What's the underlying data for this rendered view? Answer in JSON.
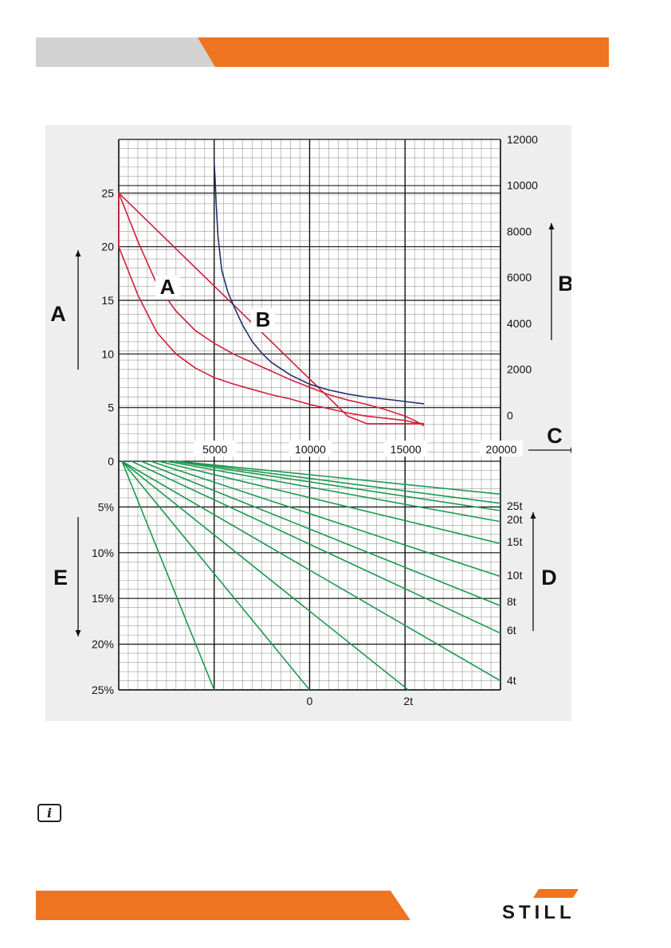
{
  "header": {
    "accent_color": "#ee7421",
    "band_color": "#d2d2d2"
  },
  "logo": {
    "text": "STILL",
    "stripe_color": "#ee7421"
  },
  "info": {
    "icon": "info-icon",
    "glyph": "i"
  },
  "chart_data": {
    "type": "line",
    "upper": {
      "x_ticks": [
        "5000",
        "10000",
        "15000",
        "20000"
      ],
      "y_left_ticks": [
        "5",
        "10",
        "15",
        "20",
        "25"
      ],
      "y_right_ticks": [
        "0",
        "2000",
        "4000",
        "6000",
        "8000",
        "10000",
        "12000"
      ],
      "xlim": [
        0,
        20000
      ],
      "ylim_left": [
        0,
        30
      ],
      "ylim_right": [
        -2000,
        12000
      ],
      "axis_labels": {
        "left": "A",
        "right": "B",
        "x": "C"
      },
      "curve_labels": {
        "A": "A",
        "B": "B"
      },
      "series": [
        {
          "name": "A (upper)",
          "axis": "left",
          "color": "#d31f3b",
          "x": [
            0,
            1000,
            2000,
            3000,
            4000,
            5000,
            6000,
            7000,
            8000,
            9000,
            10000,
            11000,
            12000,
            13000,
            14000,
            15000,
            15500,
            16000
          ],
          "y": [
            25,
            20.5,
            16.5,
            14,
            12.2,
            11,
            10,
            9.2,
            8.4,
            7.6,
            6.9,
            6.2,
            5.7,
            5.3,
            4.8,
            4.2,
            3.8,
            3.3
          ]
        },
        {
          "name": "A (lower)",
          "axis": "left",
          "color": "#d31f3b",
          "x": [
            0,
            1000,
            2000,
            3000,
            4000,
            5000,
            6000,
            7000,
            8000,
            9000,
            10000,
            11000,
            12000,
            13000,
            14000,
            15000,
            15500,
            16000
          ],
          "y": [
            20,
            15.5,
            12,
            10,
            8.7,
            7.8,
            7.2,
            6.7,
            6.2,
            5.8,
            5.3,
            4.9,
            4.5,
            4.2,
            4.0,
            3.8,
            3.6,
            3.5
          ]
        },
        {
          "name": "A (closing)",
          "axis": "left",
          "color": "#d31f3b",
          "x": [
            0,
            0,
            12000,
            13000,
            16000
          ],
          "y": [
            20,
            25,
            4.2,
            3.5,
            3.5
          ]
        },
        {
          "name": "B",
          "axis": "right",
          "color": "#21316e",
          "x": [
            5000,
            5050,
            5100,
            5200,
            5400,
            5700,
            6000,
            6500,
            7000,
            7500,
            8000,
            9000,
            10000,
            11000,
            12000,
            13000,
            14000,
            15000,
            16000
          ],
          "y": [
            11000,
            10300,
            9300,
            7800,
            6300,
            5400,
            4800,
            3900,
            3200,
            2700,
            2300,
            1750,
            1350,
            1100,
            920,
            790,
            700,
            600,
            500
          ]
        }
      ]
    },
    "lower": {
      "y_ticks": [
        "0",
        "5%",
        "10%",
        "15%",
        "20%",
        "25%"
      ],
      "ylim": [
        0,
        25
      ],
      "x_ticks": [
        "0",
        "2t"
      ],
      "axis_labels": {
        "left": "E",
        "right": "D"
      },
      "line_color": "#1c9a4f",
      "weight_lines": [
        {
          "label": "4t",
          "end_grade": 24.0
        },
        {
          "label": "6t",
          "end_grade": 18.8
        },
        {
          "label": "8t",
          "end_grade": 15.8
        },
        {
          "label": "10t",
          "end_grade": 12.6
        },
        {
          "label": "15t",
          "end_grade": 9.0
        },
        {
          "label": "20t",
          "end_grade": 6.6
        },
        {
          "label": "25t",
          "end_grade": 5.4
        }
      ],
      "extra_lines": [
        {
          "end_grade": 25
        },
        {
          "end_grade": 25
        },
        {
          "end_grade": 25
        }
      ]
    }
  }
}
